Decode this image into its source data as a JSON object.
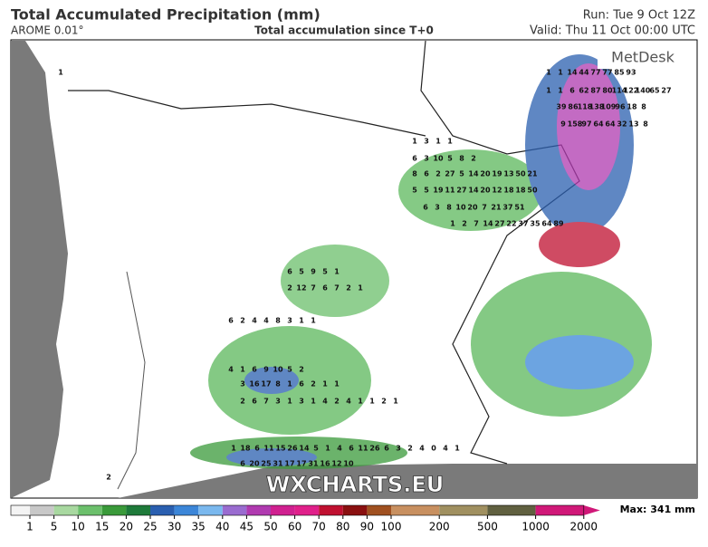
{
  "header": {
    "title": "Total Accumulated Precipitation (mm)",
    "model": "AROME 0.01°",
    "subtitle": "Total accumulation since T+0",
    "run": "Run: Tue 9 Oct 12Z",
    "valid": "Valid: Thu 11 Oct 00:00 UTC"
  },
  "map": {
    "brand": "MetDesk",
    "watermark": "WXCHARTS.EU",
    "labels": [
      [
        1,
        1,
        14,
        44,
        77,
        77,
        85,
        93
      ],
      [
        1,
        1,
        6,
        62,
        87,
        80,
        114,
        122,
        140,
        65,
        27
      ],
      [
        39,
        86,
        118,
        138,
        109,
        96,
        18,
        8
      ],
      [
        9,
        158,
        97,
        64,
        64,
        32,
        13,
        8
      ],
      [
        1,
        3,
        1,
        1
      ],
      [
        6,
        3,
        10,
        5,
        8,
        2
      ],
      [
        8,
        6,
        2,
        27,
        5,
        14,
        20,
        19,
        13,
        50,
        21
      ],
      [
        5,
        5,
        19,
        11,
        27,
        14,
        20,
        12,
        18,
        18,
        50
      ],
      [
        6,
        3,
        8,
        10,
        20,
        7,
        21,
        37,
        51
      ],
      [
        1,
        2,
        7,
        14,
        27,
        22,
        37,
        35,
        64,
        89
      ],
      [
        6,
        5,
        9,
        5,
        1
      ],
      [
        2,
        12,
        7,
        6,
        7,
        2,
        1
      ],
      [
        6,
        2,
        4,
        4,
        8,
        3,
        1,
        1
      ],
      [
        4,
        1,
        6,
        9,
        10,
        5,
        2
      ],
      [
        3,
        16,
        17,
        8,
        1,
        6,
        2,
        1,
        1
      ],
      [
        2,
        6,
        7,
        3,
        1,
        3,
        1,
        4,
        2,
        4,
        1,
        1,
        2,
        1
      ],
      [
        1,
        18,
        6,
        11,
        15,
        26,
        14,
        5,
        1,
        4,
        6,
        11,
        26,
        6,
        3,
        2,
        4,
        0,
        4,
        1
      ],
      [
        6,
        20,
        25,
        31,
        17,
        17,
        31,
        16,
        12,
        10
      ],
      [
        1
      ],
      [
        2
      ]
    ]
  },
  "legend": {
    "ticks": [
      1,
      5,
      10,
      15,
      20,
      25,
      30,
      35,
      40,
      45,
      50,
      60,
      70,
      80,
      90,
      100,
      200,
      500,
      1000,
      2000
    ],
    "colors": [
      "#f4f4f4",
      "#c8c8c8",
      "#a8d8a0",
      "#6cc06c",
      "#3a9a3a",
      "#1e7a3a",
      "#2a5fb0",
      "#3c86d8",
      "#7ab8ee",
      "#9a6cd0",
      "#b03ab0",
      "#d02090",
      "#e0208a",
      "#c01030",
      "#8a1010",
      "#a05020",
      "#c89060",
      "#a09060",
      "#606040",
      "#d01878"
    ],
    "max": "Max: 341 mm"
  }
}
